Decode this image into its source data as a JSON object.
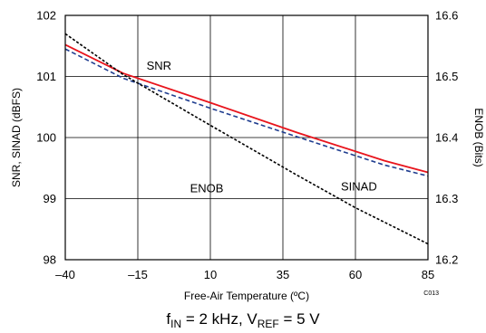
{
  "chart_data": {
    "type": "line",
    "xlabel": "Free-Air Temperature (ºC)",
    "ylabel_left": "SNR, SINAD (dBFS)",
    "ylabel_right": "ENOB (Bits)",
    "x_ticks": [
      "–40",
      "–15",
      "10",
      "35",
      "60",
      "85"
    ],
    "x_tick_values": [
      -40,
      -15,
      10,
      35,
      60,
      85
    ],
    "y_left_ticks": [
      "98",
      "99",
      "100",
      "101",
      "102"
    ],
    "y_left_tick_values": [
      98,
      99,
      100,
      101,
      102
    ],
    "y_right_ticks": [
      "16.2",
      "16.3",
      "16.4",
      "16.5",
      "16.6"
    ],
    "y_right_tick_values": [
      16.2,
      16.3,
      16.4,
      16.5,
      16.6
    ],
    "xlim": [
      -40,
      85
    ],
    "ylim_left": [
      98,
      102
    ],
    "ylim_right": [
      16.2,
      16.6
    ],
    "grid": true,
    "series": [
      {
        "name": "SNR",
        "axis": "left",
        "color": "#e8141c",
        "style": "solid",
        "x": [
          -40,
          -20,
          10,
          40,
          70,
          85
        ],
        "y": [
          101.52,
          101.05,
          100.57,
          100.08,
          99.62,
          99.43
        ]
      },
      {
        "name": "SINAD",
        "axis": "left",
        "color": "#1f3d8f",
        "style": "dashed",
        "x": [
          -40,
          -20,
          10,
          40,
          70,
          85
        ],
        "y": [
          101.45,
          100.97,
          100.48,
          100.01,
          99.55,
          99.37
        ]
      },
      {
        "name": "ENOB",
        "axis": "right",
        "color": "#000000",
        "style": "dotted",
        "x": [
          -40,
          -20,
          10,
          40,
          60,
          85
        ],
        "y": [
          16.57,
          16.503,
          16.42,
          16.338,
          16.285,
          16.226
        ]
      }
    ],
    "annotations": [
      {
        "text": "SNR",
        "x": -12,
        "y": 101.18
      },
      {
        "text": "ENOB",
        "x": 3,
        "y": 99.17
      },
      {
        "text": "SINAD",
        "x": 55,
        "y": 99.2
      }
    ],
    "figure_code": "C013"
  },
  "caption": {
    "f": "f",
    "f_sub": "IN",
    "f_rest": " = 2 kHz, V",
    "v_sub": "REF",
    "v_rest": " = 5 V"
  }
}
